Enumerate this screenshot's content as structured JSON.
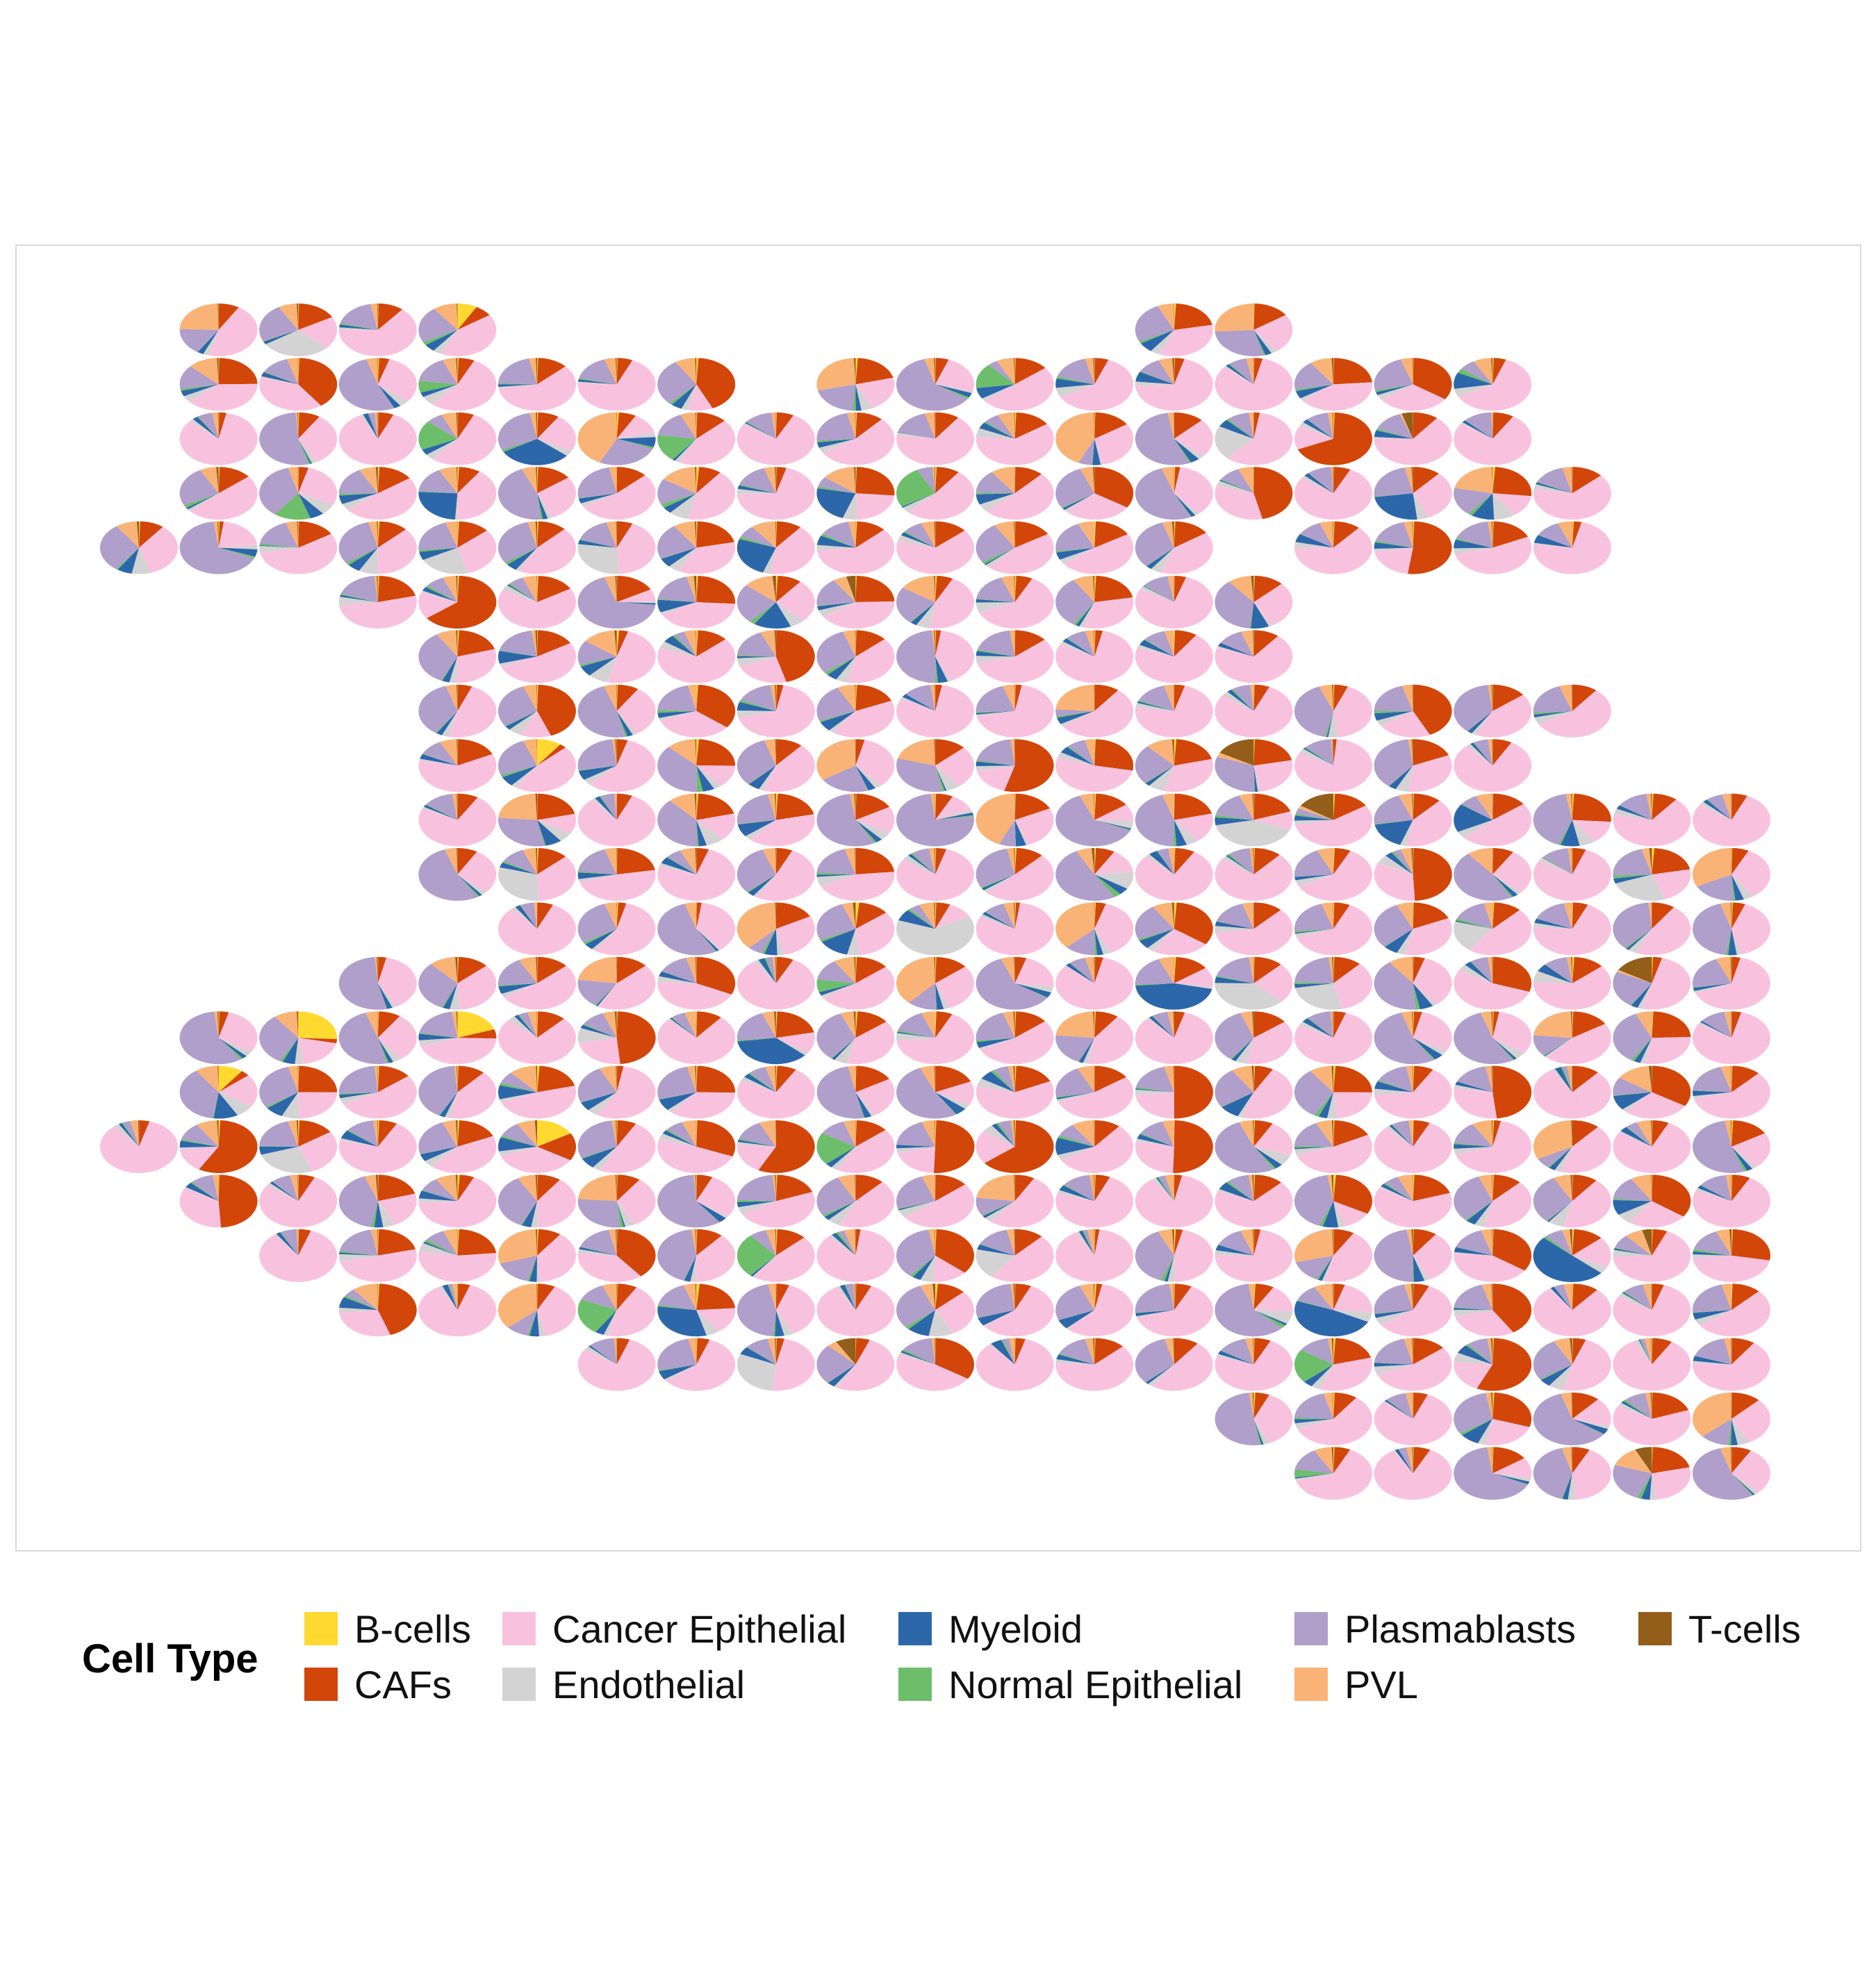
{
  "chart_data": {
    "type": "scatter-pie",
    "title": "",
    "xlabel": "",
    "ylabel": "",
    "legend": {
      "title": "Cell Type",
      "placement": "bottom",
      "entries": [
        "B-cells",
        "CAFs",
        "Cancer Epithelial",
        "Endothelial",
        "Myeloid",
        "Normal Epithelial",
        "Plasmablasts",
        "PVL",
        "T-cells"
      ]
    },
    "colors": {
      "B-cells": "#FFD92F",
      "CAFs": "#D2460A",
      "Cancer Epithelial": "#F8C2DF",
      "Endothelial": "#D3D3D3",
      "Myeloid": "#2C67AA",
      "Normal Epithelial": "#6DBE6B",
      "Plasmablasts": "#B09ECB",
      "PVL": "#F9B376",
      "T-cells": "#935D1A"
    },
    "grid": {
      "columns": 21,
      "rows": 22,
      "row_spans": [
        [
          [
            1,
            4
          ],
          [
            13,
            14
          ]
        ],
        [
          [
            1,
            7
          ],
          [
            9,
            17
          ]
        ],
        [
          [
            1,
            17
          ]
        ],
        [
          [
            1,
            18
          ]
        ],
        [
          [
            0,
            13
          ],
          [
            15,
            18
          ]
        ],
        [
          [
            3,
            14
          ]
        ],
        [
          [
            4,
            14
          ]
        ],
        [
          [
            4,
            18
          ]
        ],
        [
          [
            4,
            17
          ]
        ],
        [
          [
            4,
            20
          ]
        ],
        [
          [
            4,
            20
          ]
        ],
        [
          [
            5,
            20
          ]
        ],
        [
          [
            3,
            20
          ]
        ],
        [
          [
            1,
            20
          ]
        ],
        [
          [
            1,
            20
          ]
        ],
        [
          [
            0,
            20
          ]
        ],
        [
          [
            1,
            20
          ]
        ],
        [
          [
            2,
            3
          ],
          [
            4,
            20
          ]
        ],
        [
          [
            3,
            20
          ]
        ],
        [
          [
            6,
            20
          ]
        ],
        [
          [
            14,
            20
          ]
        ],
        [
          [
            15,
            20
          ]
        ]
      ]
    },
    "composition_note": "",
    "typical_composition": {
      "Cancer Epithelial": 0.5,
      "Plasmablasts": 0.2,
      "CAFs": 0.14,
      "PVL": 0.06,
      "Myeloid": 0.04,
      "Endothelial": 0.04,
      "Normal Epithelial": 0.01,
      "B-cells": 0.005,
      "T-cells": 0.005
    }
  }
}
